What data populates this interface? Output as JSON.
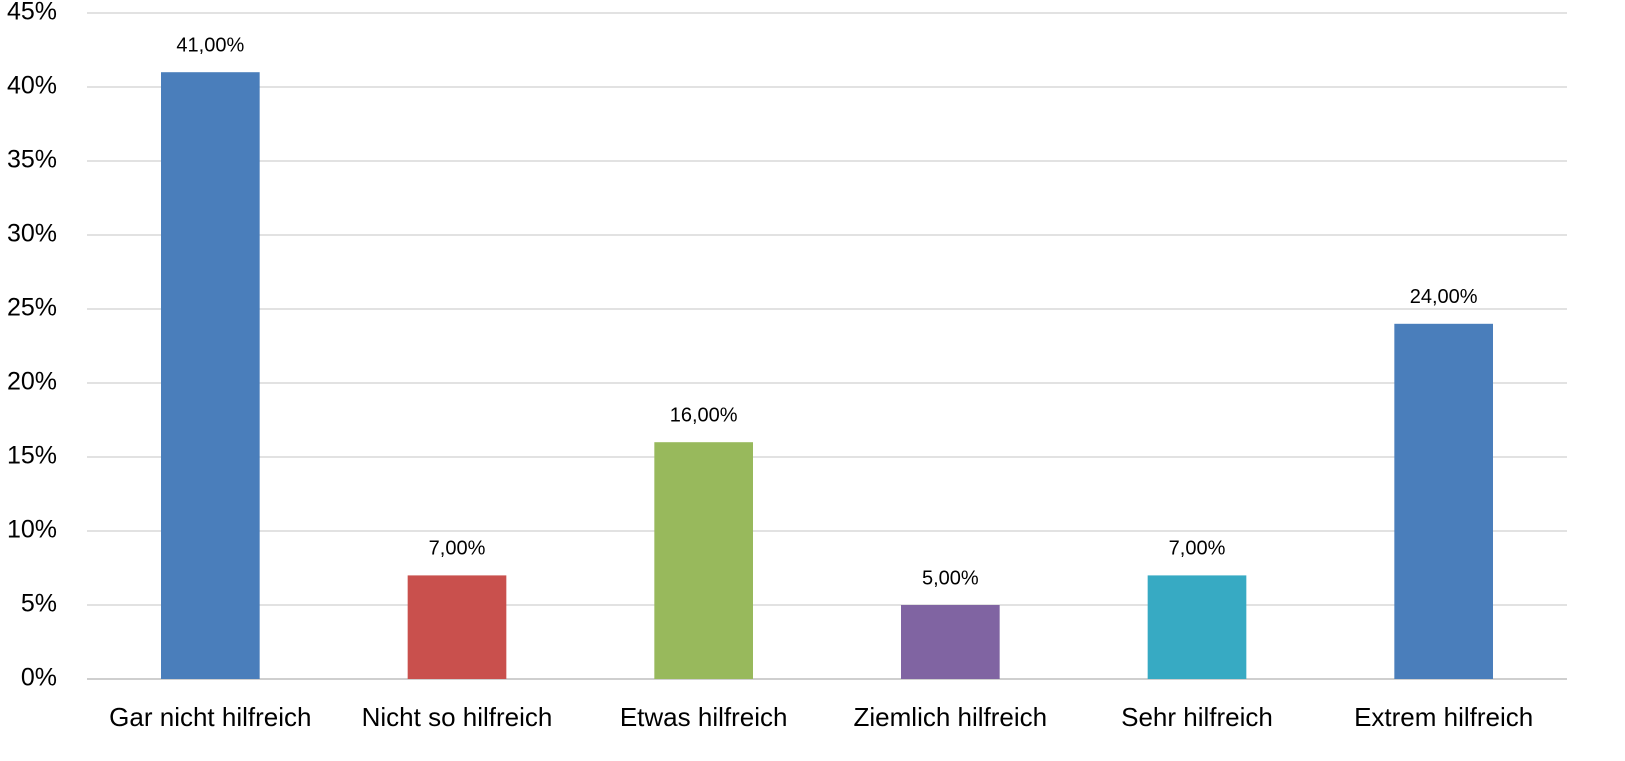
{
  "chart_data": {
    "type": "bar",
    "categories": [
      "Gar nicht hilfreich",
      "Nicht so hilfreich",
      "Etwas hilfreich",
      "Ziemlich hilfreich",
      "Sehr hilfreich",
      "Extrem hilfreich"
    ],
    "values": [
      41,
      7,
      16,
      5,
      7,
      24
    ],
    "value_labels": [
      "41,00%",
      "7,00%",
      "16,00%",
      "5,00%",
      "7,00%",
      "24,00%"
    ],
    "colors": [
      "#4a7ebb",
      "#c9504d",
      "#98b95c",
      "#8064a2",
      "#37aac3",
      "#4a7ebb"
    ],
    "ylim": [
      0,
      45
    ],
    "yticks": [
      {
        "value": 0,
        "label": "0%"
      },
      {
        "value": 5,
        "label": "5%"
      },
      {
        "value": 10,
        "label": "10%"
      },
      {
        "value": 15,
        "label": "15%"
      },
      {
        "value": 20,
        "label": "20%"
      },
      {
        "value": 25,
        "label": "25%"
      },
      {
        "value": 30,
        "label": "30%"
      },
      {
        "value": 35,
        "label": "35%"
      },
      {
        "value": 40,
        "label": "40%"
      },
      {
        "value": 45,
        "label": "45%"
      }
    ],
    "grid": true
  }
}
